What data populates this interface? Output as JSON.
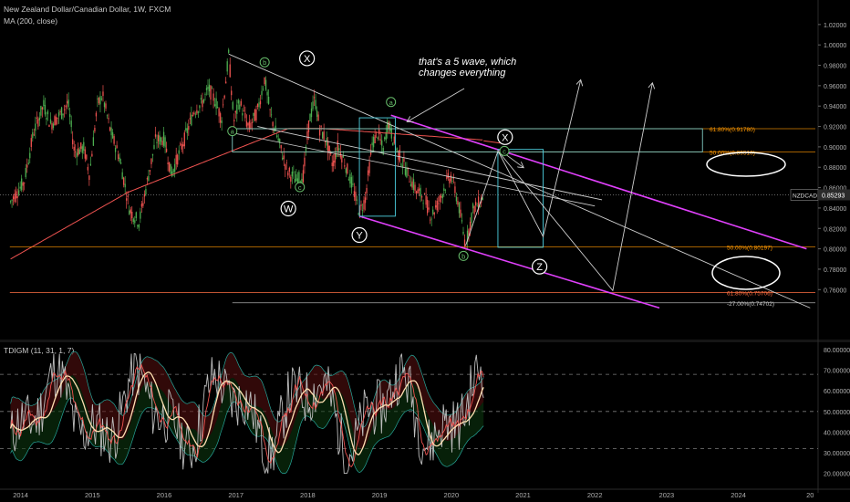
{
  "header": {
    "symbol_line": "New Zealand Dollar/Canadian Dollar, 1W, FXCM",
    "ma_line": "MA (200, close)",
    "indicator_line": "TDIGM (11, 31, 1, 7)"
  },
  "annotation_text": [
    "that's a 5 wave, which",
    "changes everything"
  ],
  "wave_labels": [
    {
      "text": "X",
      "style": "big",
      "t": 2017.99,
      "p": 0.9868
    },
    {
      "text": "W",
      "style": "big",
      "t": 2017.73,
      "p": 0.8395
    },
    {
      "text": "Y",
      "style": "big",
      "t": 2018.72,
      "p": 0.8135
    },
    {
      "text": "X",
      "style": "big-right",
      "t": 2020.75,
      "p": 0.9095
    },
    {
      "text": "Z",
      "style": "big-right",
      "t": 2021.23,
      "p": 0.7825
    },
    {
      "text": "a",
      "style": "small",
      "t": 2016.95,
      "p": 0.9155
    },
    {
      "text": "b",
      "style": "small",
      "t": 2017.4,
      "p": 0.983
    },
    {
      "text": "c",
      "style": "small",
      "t": 2017.89,
      "p": 0.8605
    },
    {
      "text": "a",
      "style": "small",
      "t": 2019.16,
      "p": 0.944
    },
    {
      "text": "b",
      "style": "small",
      "t": 2020.17,
      "p": 0.793
    },
    {
      "text": "c",
      "style": "small-right",
      "t": 2020.74,
      "p": 0.896
    }
  ],
  "fib_levels": [
    {
      "label": "61.80%(0.91780)",
      "price": 0.9178,
      "color": "#ff9800",
      "t_start": 2016.95
    },
    {
      "label": "50.00%(0.89510)",
      "price": 0.8951,
      "color": "#ff9800",
      "t_start": 2016.95
    },
    {
      "label": "50.00%(0.80197)",
      "price": 0.80197,
      "color": "#ff9800",
      "t_start": 2013.85
    },
    {
      "label": "61.80%(0.75706)",
      "price": 0.75706,
      "color": "#ff7043",
      "t_start": 2013.85
    },
    {
      "label": "-27.00%(0.74702)",
      "price": 0.74702,
      "color": "#c8c8c8",
      "t_start": 2016.95
    }
  ],
  "price_tag": {
    "symbol": "NZDCAD",
    "value": "0.85293",
    "price": 0.85293
  },
  "chart_data": [
    {
      "type": "candlestick",
      "title": "New Zealand Dollar/Canadian Dollar, 1W, FXCM",
      "price_axis_ticks": [
        "1.02000",
        "1.00000",
        "0.98000",
        "0.96000",
        "0.94000",
        "0.92000",
        "0.90000",
        "0.88000",
        "0.86000",
        "0.84000",
        "0.82000",
        "0.80000",
        "0.78000",
        "0.76000"
      ],
      "time_axis_ticks": [
        "2014",
        "2015",
        "2016",
        "2017",
        "2018",
        "2019",
        "2020",
        "2021",
        "2022",
        "2023",
        "2024",
        "20"
      ],
      "ylim": [
        0.742,
        1.028
      ],
      "xlim": [
        2013.86,
        2024.95
      ],
      "price_path": [
        {
          "t": 2013.86,
          "p": 0.846
        },
        {
          "t": 2014.05,
          "p": 0.866
        },
        {
          "t": 2014.18,
          "p": 0.914
        },
        {
          "t": 2014.32,
          "p": 0.941
        },
        {
          "t": 2014.42,
          "p": 0.922
        },
        {
          "t": 2014.58,
          "p": 0.934
        },
        {
          "t": 2014.66,
          "p": 0.944
        },
        {
          "t": 2014.75,
          "p": 0.895
        },
        {
          "t": 2014.88,
          "p": 0.899
        },
        {
          "t": 2014.96,
          "p": 0.873
        },
        {
          "t": 2015.07,
          "p": 0.941
        },
        {
          "t": 2015.14,
          "p": 0.951
        },
        {
          "t": 2015.25,
          "p": 0.916
        },
        {
          "t": 2015.38,
          "p": 0.889
        },
        {
          "t": 2015.52,
          "p": 0.838
        },
        {
          "t": 2015.65,
          "p": 0.826
        },
        {
          "t": 2015.8,
          "p": 0.878
        },
        {
          "t": 2015.88,
          "p": 0.906
        },
        {
          "t": 2016.0,
          "p": 0.908
        },
        {
          "t": 2016.1,
          "p": 0.873
        },
        {
          "t": 2016.28,
          "p": 0.907
        },
        {
          "t": 2016.42,
          "p": 0.936
        },
        {
          "t": 2016.52,
          "p": 0.942
        },
        {
          "t": 2016.62,
          "p": 0.957
        },
        {
          "t": 2016.72,
          "p": 0.944
        },
        {
          "t": 2016.8,
          "p": 0.927
        },
        {
          "t": 2016.9,
          "p": 0.991
        },
        {
          "t": 2016.97,
          "p": 0.925
        },
        {
          "t": 2017.05,
          "p": 0.944
        },
        {
          "t": 2017.18,
          "p": 0.918
        },
        {
          "t": 2017.3,
          "p": 0.935
        },
        {
          "t": 2017.4,
          "p": 0.967
        },
        {
          "t": 2017.48,
          "p": 0.932
        },
        {
          "t": 2017.6,
          "p": 0.904
        },
        {
          "t": 2017.72,
          "p": 0.876
        },
        {
          "t": 2017.84,
          "p": 0.867
        },
        {
          "t": 2017.94,
          "p": 0.872
        },
        {
          "t": 2018.02,
          "p": 0.925
        },
        {
          "t": 2018.1,
          "p": 0.947
        },
        {
          "t": 2018.17,
          "p": 0.917
        },
        {
          "t": 2018.25,
          "p": 0.908
        },
        {
          "t": 2018.35,
          "p": 0.882
        },
        {
          "t": 2018.42,
          "p": 0.901
        },
        {
          "t": 2018.52,
          "p": 0.884
        },
        {
          "t": 2018.62,
          "p": 0.862
        },
        {
          "t": 2018.72,
          "p": 0.836
        },
        {
          "t": 2018.8,
          "p": 0.848
        },
        {
          "t": 2018.9,
          "p": 0.903
        },
        {
          "t": 2018.98,
          "p": 0.914
        },
        {
          "t": 2019.05,
          "p": 0.896
        },
        {
          "t": 2019.12,
          "p": 0.925
        },
        {
          "t": 2019.22,
          "p": 0.9
        },
        {
          "t": 2019.3,
          "p": 0.888
        },
        {
          "t": 2019.42,
          "p": 0.87
        },
        {
          "t": 2019.52,
          "p": 0.856
        },
        {
          "t": 2019.62,
          "p": 0.851
        },
        {
          "t": 2019.72,
          "p": 0.832
        },
        {
          "t": 2019.84,
          "p": 0.848
        },
        {
          "t": 2019.93,
          "p": 0.865
        },
        {
          "t": 2020.0,
          "p": 0.872
        },
        {
          "t": 2020.1,
          "p": 0.844
        },
        {
          "t": 2020.2,
          "p": 0.803
        },
        {
          "t": 2020.3,
          "p": 0.838
        },
        {
          "t": 2020.4,
          "p": 0.846
        },
        {
          "t": 2020.45,
          "p": 0.852
        }
      ]
    },
    {
      "type": "line",
      "title": "TDIGM (11, 31, 1, 7)",
      "y_axis_ticks": [
        "80.00000",
        "70.00000",
        "60.00000",
        "50.00000",
        "40.00000",
        "30.00000",
        "20.00000"
      ],
      "ylim": [
        15,
        83
      ]
    }
  ]
}
